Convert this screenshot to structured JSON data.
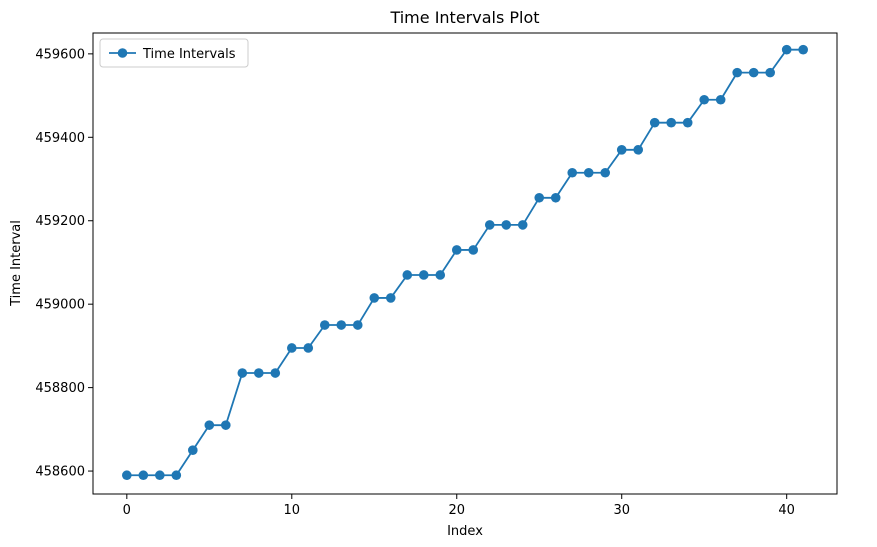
{
  "chart_data": {
    "type": "line",
    "title": "Time Intervals Plot",
    "xlabel": "Index",
    "ylabel": "Time Interval",
    "xlim": [
      -2.05,
      43.05
    ],
    "ylim": [
      458545,
      459650
    ],
    "xticks": [
      0,
      10,
      20,
      30,
      40
    ],
    "yticks": [
      458600,
      458800,
      459000,
      459200,
      459400,
      459600
    ],
    "grid": false,
    "legend_position": "upper left",
    "series": [
      {
        "name": "Time Intervals",
        "color": "#1f77b4",
        "marker": "circle",
        "x": [
          0,
          1,
          2,
          3,
          4,
          5,
          6,
          7,
          8,
          9,
          10,
          11,
          12,
          13,
          14,
          15,
          16,
          17,
          18,
          19,
          20,
          21,
          22,
          23,
          24,
          25,
          26,
          27,
          28,
          29,
          30,
          31,
          32,
          33,
          34,
          35,
          36,
          37,
          38,
          39,
          40,
          41
        ],
        "y": [
          458590,
          458590,
          458590,
          458590,
          458650,
          458710,
          458710,
          458835,
          458835,
          458835,
          458895,
          458895,
          458950,
          458950,
          458950,
          459015,
          459015,
          459070,
          459070,
          459070,
          459130,
          459130,
          459190,
          459190,
          459190,
          459255,
          459255,
          459315,
          459315,
          459315,
          459370,
          459370,
          459435,
          459435,
          459435,
          459490,
          459490,
          459555,
          459555,
          459555,
          459610,
          459610
        ]
      }
    ]
  }
}
